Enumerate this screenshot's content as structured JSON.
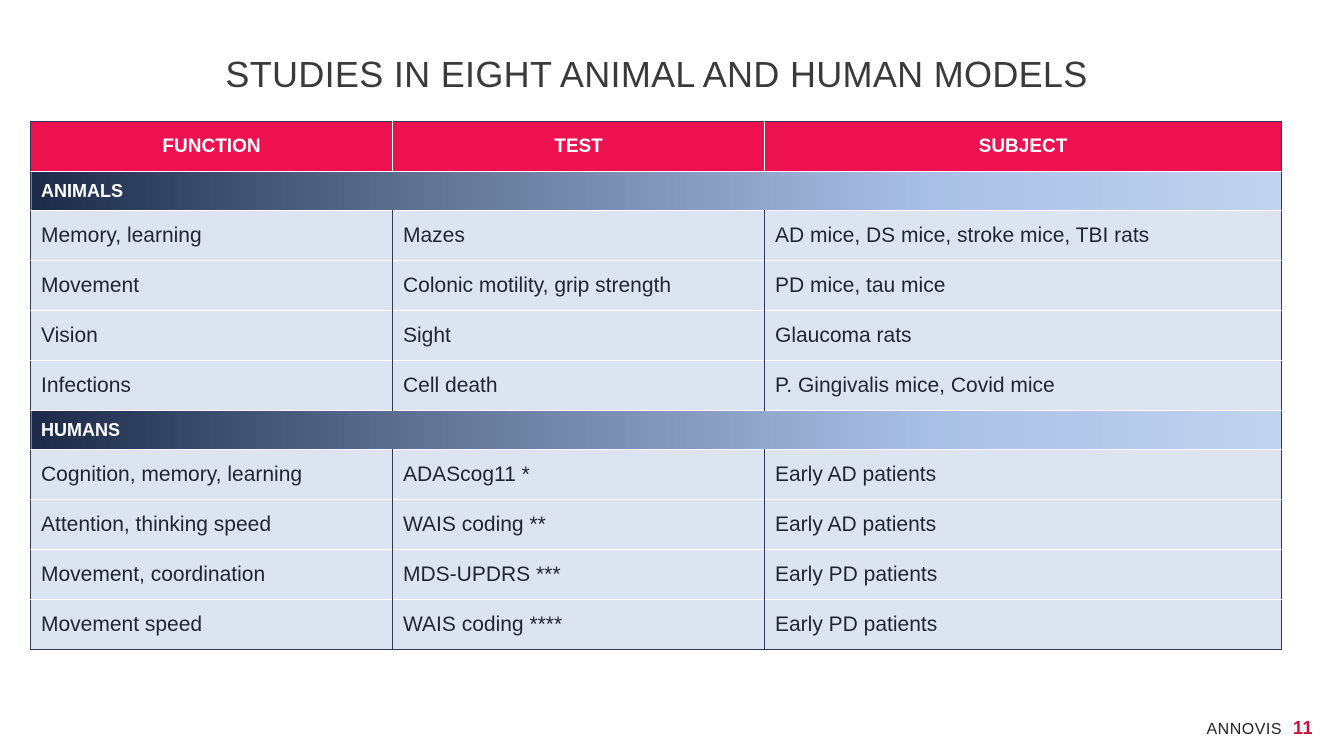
{
  "title": "STUDIES IN EIGHT ANIMAL AND HUMAN MODELS",
  "columns": [
    "FUNCTION",
    "TEST",
    "SUBJECT"
  ],
  "sections": [
    {
      "label": "ANIMALS",
      "rows": [
        [
          "Memory, learning",
          "Mazes",
          "AD mice, DS mice, stroke mice, TBI rats"
        ],
        [
          "Movement",
          "Colonic motility, grip strength",
          "PD mice, tau mice"
        ],
        [
          "Vision",
          "Sight",
          "Glaucoma rats"
        ],
        [
          "Infections",
          "Cell death",
          "P. Gingivalis mice, Covid mice"
        ]
      ]
    },
    {
      "label": "HUMANS",
      "rows": [
        [
          "Cognition, memory, learning",
          "ADAScog11 *",
          "Early AD patients"
        ],
        [
          "Attention, thinking speed",
          "WAIS coding **",
          "Early AD patients"
        ],
        [
          "Movement, coordination",
          "MDS-UPDRS ***",
          "Early PD patients"
        ],
        [
          "Movement speed",
          "WAIS coding ****",
          "Early PD patients"
        ]
      ]
    }
  ],
  "footer": {
    "brand": "ANNOVIS",
    "page": "11"
  },
  "colors": {
    "header": "#ee1150",
    "cell": "#dce4f2",
    "section_dark": "#1c2a49",
    "page_number": "#c8103f"
  }
}
